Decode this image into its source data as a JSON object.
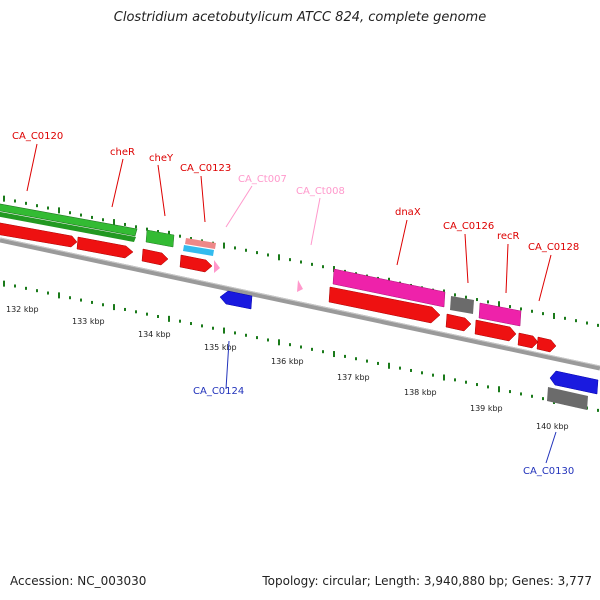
{
  "title": "Clostridium acetobutylicum ATCC 824, complete genome",
  "accession": "Accession: NC_003030",
  "summary": "Topology: circular; Length: 3,940,880 bp; Genes: 3,777",
  "colors": {
    "backbone": "#8a8a8a",
    "cds_forward": "#ee1111",
    "cds_reverse_blue": "#1a1adf",
    "cds_green": "#33bb33",
    "cds_magenta": "#ee22aa",
    "cds_grey": "#6b6b6b",
    "cds_salmon": "#ee8888",
    "cds_cyan": "#33bbee",
    "trna_pink": "#ff99cc",
    "label_red": "#dd0000",
    "label_blue": "#2233bb",
    "label_pink": "#ff99cc",
    "gc_dots": "#1a7a1a"
  },
  "ticks": [
    "132 kbp",
    "133 kbp",
    "134 kbp",
    "135 kbp",
    "136 kbp",
    "137 kbp",
    "138 kbp",
    "139 kbp",
    "140 kbp"
  ],
  "gene_labels": [
    {
      "text": "CA_C0120",
      "color": "label_red"
    },
    {
      "text": "cheR",
      "color": "label_red"
    },
    {
      "text": "cheY",
      "color": "label_red"
    },
    {
      "text": "CA_C0123",
      "color": "label_red"
    },
    {
      "text": "CA_Ct007",
      "color": "label_pink"
    },
    {
      "text": "CA_Ct008",
      "color": "label_pink"
    },
    {
      "text": "dnaX",
      "color": "label_red"
    },
    {
      "text": "CA_C0126",
      "color": "label_red"
    },
    {
      "text": "recR",
      "color": "label_red"
    },
    {
      "text": "CA_C0128",
      "color": "label_red"
    },
    {
      "text": "CA_C0124",
      "color": "label_blue"
    },
    {
      "text": "CA_C0130",
      "color": "label_blue"
    }
  ]
}
